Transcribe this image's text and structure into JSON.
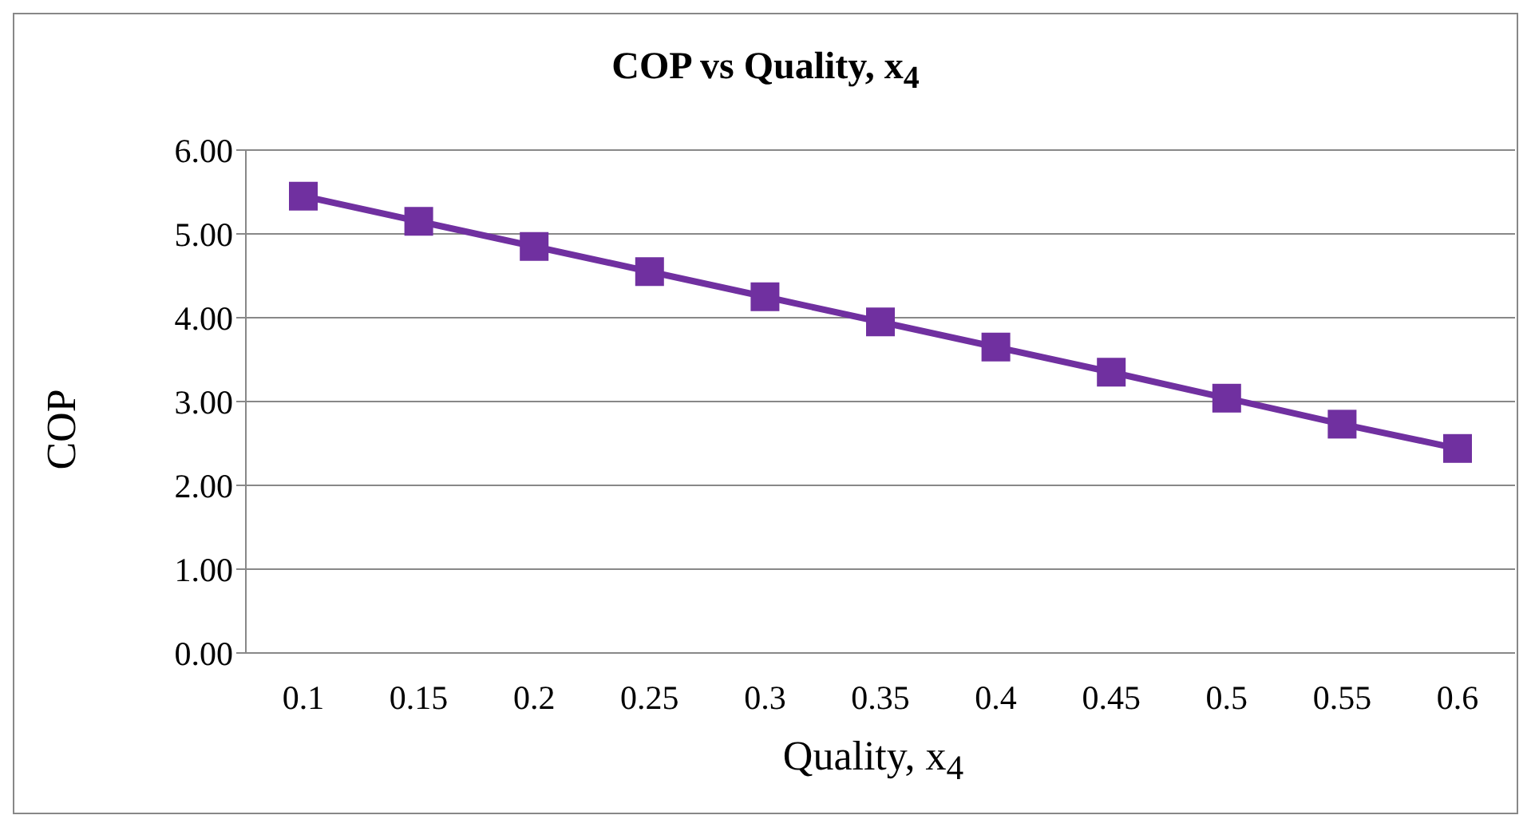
{
  "chart_data": {
    "type": "line",
    "title": "COP vs Quality, x$_{4}$",
    "xlabel": "Quality, x$_{4}$",
    "ylabel": "COP",
    "categories": [
      "0.1",
      "0.15",
      "0.2",
      "0.25",
      "0.3",
      "0.35",
      "0.4",
      "0.45",
      "0.5",
      "0.55",
      "0.6"
    ],
    "series": [
      {
        "color": "#7030a0",
        "values": [
          5.45,
          5.15,
          4.85,
          4.55,
          4.25,
          3.95,
          3.65,
          3.35,
          3.04,
          2.73,
          2.44
        ]
      }
    ],
    "ylim": [
      0,
      6
    ],
    "yticks": [
      {
        "value": 0,
        "label": "0.00"
      },
      {
        "value": 1,
        "label": "1.00"
      },
      {
        "value": 2,
        "label": "2.00"
      },
      {
        "value": 3,
        "label": "3.00"
      },
      {
        "value": 4,
        "label": "4.00"
      },
      {
        "value": 5,
        "label": "5.00"
      },
      {
        "value": 6,
        "label": "6.00"
      }
    ],
    "grid": "y",
    "marker": "square",
    "line_style": "solid"
  }
}
